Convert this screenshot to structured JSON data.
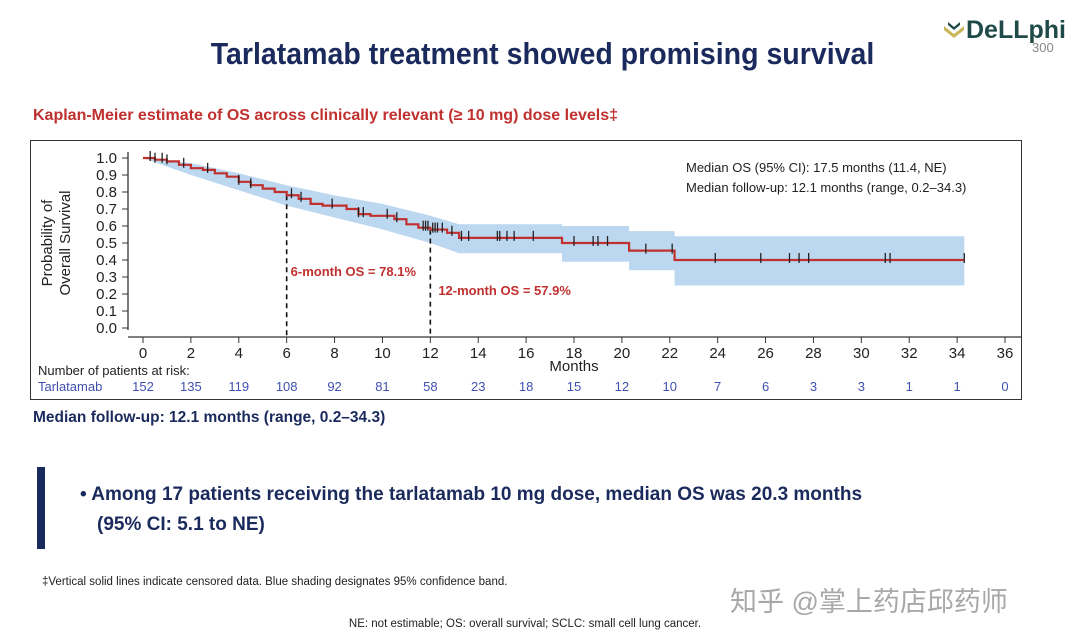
{
  "title": "Tarlatamab treatment showed promising survival",
  "logo": {
    "text": "DeLLphi",
    "sub": "300"
  },
  "subtitle": "Kaplan-Meier estimate of OS across clinically relevant (≥ 10 mg) dose levels‡",
  "followup": "Median follow-up: 12.1 months (range, 0.2–34.3)",
  "bullets": [
    "• Among 17 patients receiving the tarlatamab 10 mg dose, median OS was 20.3 months",
    "(95% CI: 5.1 to NE)"
  ],
  "footnote": "‡Vertical solid lines indicate censored data. Blue shading designates 95% confidence band.",
  "abbrev": "NE: not estimable; OS: overall survival; SCLC: small cell lung cancer.",
  "watermark": "知乎 @掌上药店邱药师",
  "chart_data": {
    "type": "line",
    "subtype": "kaplan-meier",
    "xlabel": "Months",
    "ylabel": "Probability of Overall Survival",
    "ylabel_lines": [
      "Probability of",
      "Overall Survival"
    ],
    "xlim": [
      0,
      36
    ],
    "ylim": [
      0,
      1
    ],
    "xticks": [
      0,
      2,
      4,
      6,
      8,
      10,
      12,
      14,
      16,
      18,
      20,
      22,
      24,
      26,
      28,
      30,
      32,
      34,
      36
    ],
    "yticks": [
      "0.0",
      "0.1",
      "0.2",
      "0.3",
      "0.4",
      "0.5",
      "0.6",
      "0.7",
      "0.8",
      "0.9",
      "1.0"
    ],
    "colors": {
      "line": "#c0302e",
      "band": "#bcd7f0",
      "risk": "#4050b0"
    },
    "series": [
      {
        "steps": [
          [
            0,
            1.0
          ],
          [
            0.5,
            0.99
          ],
          [
            1,
            0.98
          ],
          [
            1.5,
            0.96
          ],
          [
            2,
            0.94
          ],
          [
            2.5,
            0.93
          ],
          [
            3,
            0.91
          ],
          [
            3.5,
            0.89
          ],
          [
            4,
            0.86
          ],
          [
            4.5,
            0.84
          ],
          [
            5,
            0.82
          ],
          [
            5.5,
            0.8
          ],
          [
            6,
            0.781
          ],
          [
            6.5,
            0.76
          ],
          [
            7,
            0.73
          ],
          [
            7.5,
            0.72
          ],
          [
            8.5,
            0.7
          ],
          [
            9,
            0.67
          ],
          [
            9.5,
            0.66
          ],
          [
            10.5,
            0.64
          ],
          [
            11,
            0.61
          ],
          [
            11.5,
            0.59
          ],
          [
            12,
            0.579
          ],
          [
            12.7,
            0.56
          ],
          [
            13.2,
            0.53
          ],
          [
            17.5,
            0.5
          ],
          [
            20.3,
            0.455
          ],
          [
            22.2,
            0.4
          ],
          [
            34.3,
            0.4
          ]
        ],
        "ci_upper": [
          [
            0,
            1.0
          ],
          [
            2,
            0.97
          ],
          [
            4,
            0.91
          ],
          [
            6,
            0.84
          ],
          [
            8,
            0.78
          ],
          [
            10,
            0.73
          ],
          [
            12,
            0.66
          ],
          [
            13.2,
            0.61
          ],
          [
            17.5,
            0.61
          ],
          [
            17.5,
            0.6
          ],
          [
            20.3,
            0.6
          ],
          [
            20.3,
            0.57
          ],
          [
            22.2,
            0.57
          ],
          [
            22.2,
            0.54
          ],
          [
            34.3,
            0.54
          ]
        ],
        "ci_lower": [
          [
            0,
            1.0
          ],
          [
            2,
            0.9
          ],
          [
            4,
            0.81
          ],
          [
            6,
            0.72
          ],
          [
            8,
            0.65
          ],
          [
            10,
            0.58
          ],
          [
            12,
            0.5
          ],
          [
            13.2,
            0.44
          ],
          [
            17.5,
            0.44
          ],
          [
            17.5,
            0.39
          ],
          [
            20.3,
            0.39
          ],
          [
            20.3,
            0.34
          ],
          [
            22.2,
            0.34
          ],
          [
            22.2,
            0.25
          ],
          [
            34.3,
            0.25
          ]
        ],
        "censored": [
          0.3,
          0.5,
          0.8,
          1.0,
          1.7,
          2.7,
          4.0,
          4.5,
          6.2,
          6.6,
          7.9,
          9.0,
          9.2,
          10.2,
          10.6,
          11.7,
          11.8,
          11.9,
          12.1,
          12.2,
          12.3,
          12.5,
          12.9,
          13.3,
          13.6,
          14.8,
          14.9,
          15.2,
          15.5,
          16.3,
          18.0,
          18.8,
          19.0,
          19.4,
          21.0,
          22.1,
          23.9,
          25.8,
          27.0,
          27.4,
          27.8,
          31.0,
          31.2,
          34.3
        ]
      }
    ],
    "annotations": [
      {
        "x": 6,
        "y": 0.781,
        "label": "6-month OS = 78.1%"
      },
      {
        "x": 12,
        "y": 0.579,
        "label": "12-month OS = 57.9%"
      }
    ],
    "stats": [
      "Median OS (95% CI): 17.5 months (11.4, NE)",
      "Median follow-up: 12.1 months (range, 0.2–34.3)"
    ],
    "risk_table": {
      "title": "Number of patients at risk:",
      "label": "Tarlatamab",
      "values": [
        152,
        135,
        119,
        108,
        92,
        81,
        58,
        23,
        18,
        15,
        12,
        10,
        7,
        6,
        3,
        3,
        1,
        1,
        0
      ]
    }
  }
}
